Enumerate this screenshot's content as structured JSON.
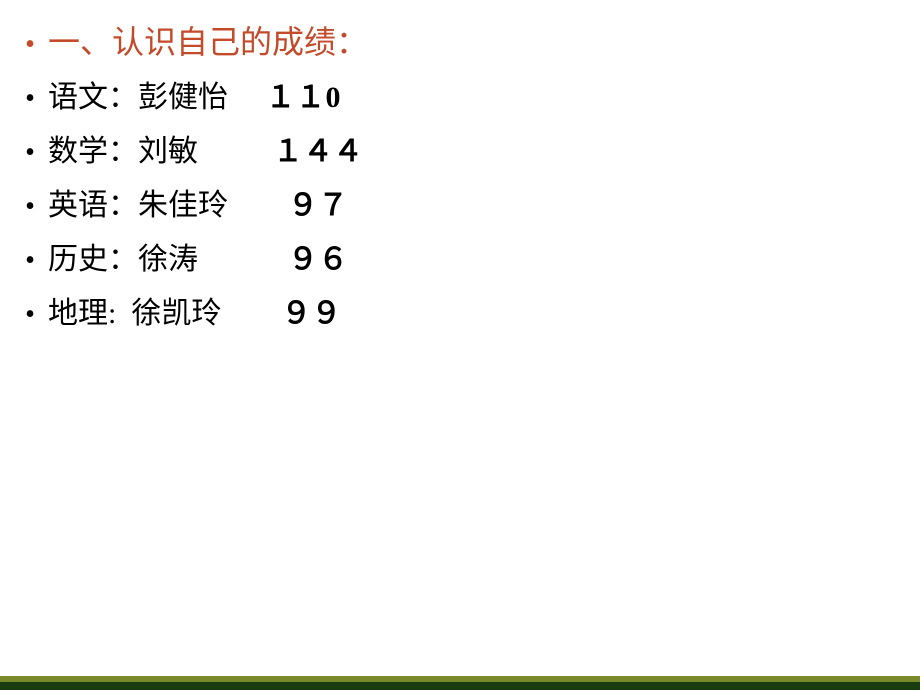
{
  "heading": {
    "bullet": "•",
    "text": "一、认识自己的成绩：",
    "color": "#c44b2a",
    "fontsize": 32
  },
  "rows": [
    {
      "bullet": "•",
      "subject": "语文：",
      "name": "彭健怡",
      "pad": "　 ",
      "score": "１１0"
    },
    {
      "bullet": "•",
      "subject": "数学：",
      "name": "刘敏",
      "pad": "　　  ",
      "score": "１４４"
    },
    {
      "bullet": "•",
      "subject": "英语：",
      "name": "朱佳玲",
      "pad": "　　",
      "score": "９７"
    },
    {
      "bullet": "•",
      "subject": "历史：",
      "name": "徐涛",
      "pad": "　　　",
      "score": "９６"
    },
    {
      "bullet": "•",
      "subject": "地理:  ",
      "name": "徐凯玲",
      "pad": "　　",
      "score": "９９"
    }
  ],
  "style": {
    "background_color": "#ffffff",
    "text_color": "#000000",
    "heading_color": "#c44b2a",
    "body_fontsize": 30,
    "footer_olive_color": "#7a8a2a",
    "footer_dark_color": "#1a3d0f"
  }
}
